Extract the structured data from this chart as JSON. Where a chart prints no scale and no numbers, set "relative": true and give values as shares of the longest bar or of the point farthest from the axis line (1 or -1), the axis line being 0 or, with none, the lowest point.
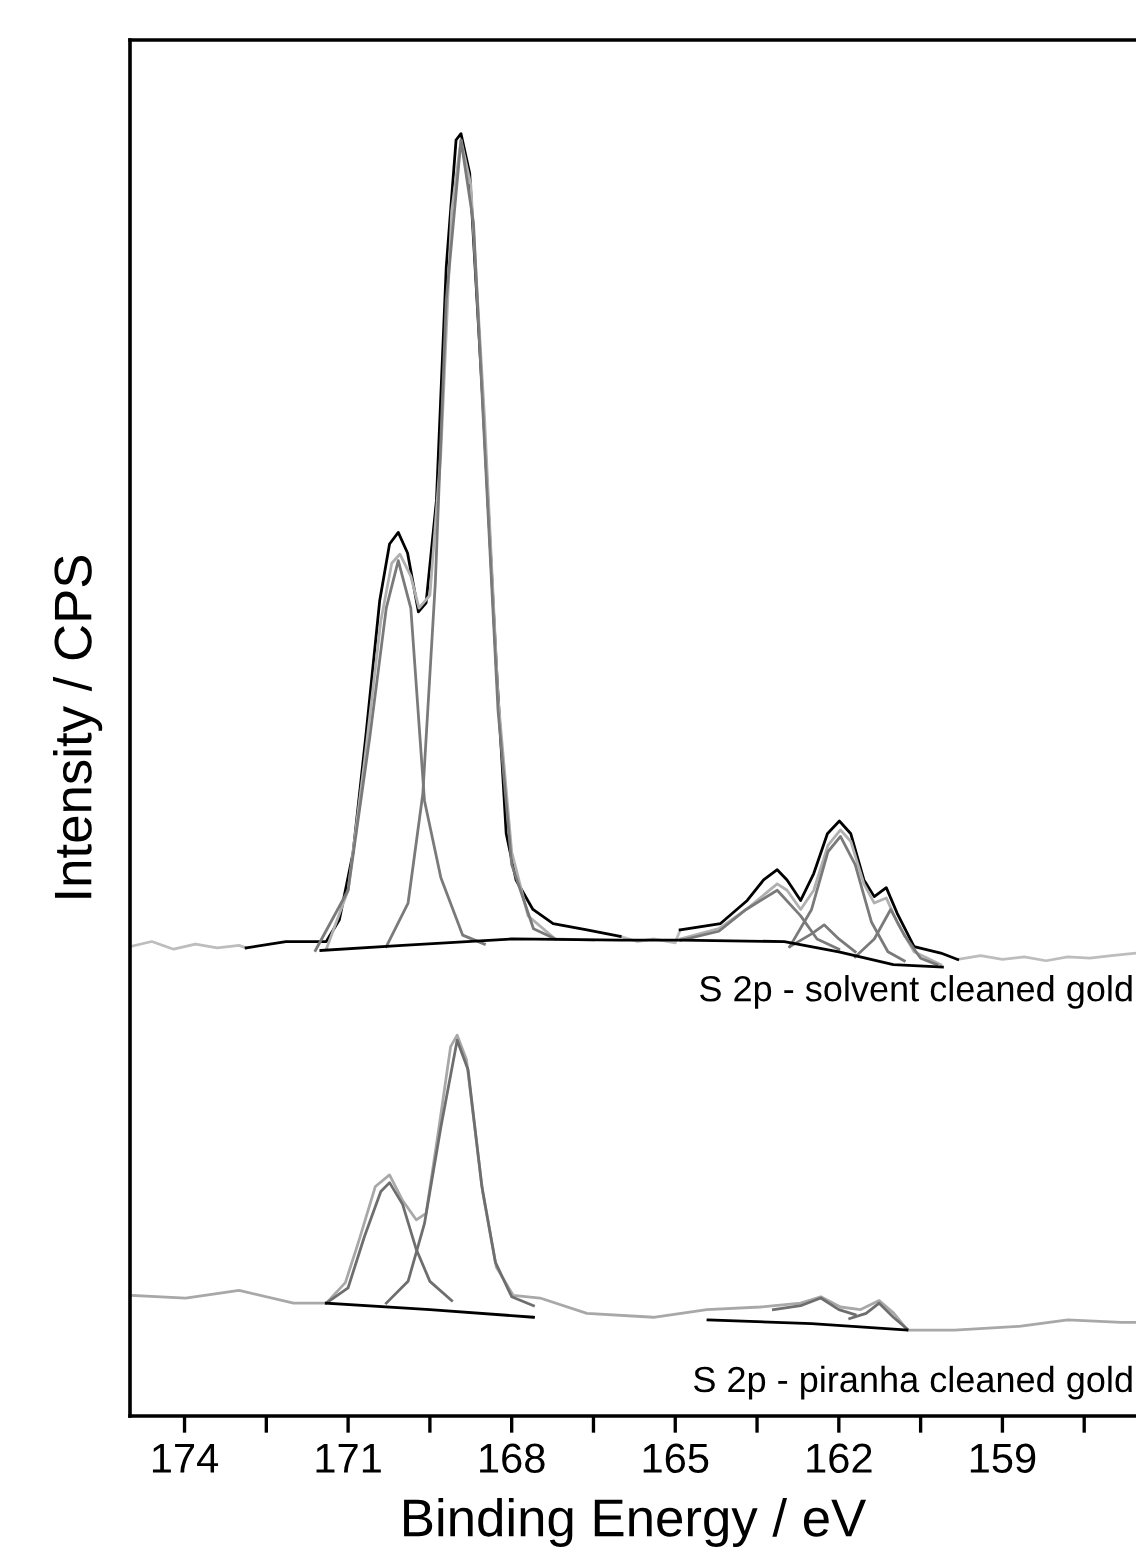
{
  "chart_data": {
    "type": "line",
    "relative": true,
    "xlabel": "Binding Energy / eV",
    "ylabel": "Intensity / CPS",
    "xlim": [
      175,
      156.55
    ],
    "xticks": [
      174,
      {
        "value": 172.5,
        "label": null
      },
      171,
      {
        "value": 169.5,
        "label": null
      },
      168,
      {
        "value": 166.5,
        "label": null
      },
      165,
      {
        "value": 163.5,
        "label": null
      },
      162,
      {
        "value": 160.5,
        "label": null
      },
      159,
      {
        "value": 157.5,
        "label": null
      }
    ],
    "tick_labels": "x",
    "grid": false,
    "legend": false,
    "marker": "none",
    "line_style": "solid",
    "annotations": [
      "S 2p - solvent cleaned gold",
      "S 2p - piranha cleaned gold"
    ],
    "series": [
      {
        "color": "#bdbdbd",
        "x": [
          175.0,
          174.6,
          174.2,
          173.8,
          173.4,
          173.0,
          172.87,
          169.0,
          166.01,
          165.7,
          165.4,
          165.0,
          164.91,
          162.0,
          159.82,
          159.4,
          159.0,
          158.6,
          158.2,
          157.8,
          157.4,
          157.0,
          156.55
        ],
        "values": [
          0.366,
          0.37,
          0.364,
          0.368,
          0.365,
          0.367,
          0.365,
          null,
          0.374,
          0.37,
          0.372,
          0.369,
          0.379,
          null,
          0.356,
          0.359,
          0.356,
          0.358,
          0.355,
          0.358,
          0.357,
          0.359,
          0.361
        ]
      },
      {
        "color": "#000000",
        "x": [
          172.87,
          172.14,
          171.4,
          171.16,
          170.91,
          170.67,
          170.42,
          170.24,
          170.08,
          169.91,
          169.71,
          169.57,
          169.38,
          169.2,
          169.02,
          168.93,
          168.77,
          168.53,
          168.28,
          168.1,
          167.92,
          167.61,
          167.24,
          166.62,
          166.01,
          165.4,
          164.91,
          164.17,
          163.68,
          163.38,
          163.13,
          162.95,
          162.7,
          162.46,
          162.21,
          161.99,
          161.78,
          161.54,
          161.35,
          161.13,
          160.93,
          160.62,
          160.13,
          159.82
        ],
        "values": [
          0.365,
          0.37,
          0.37,
          0.387,
          0.439,
          0.532,
          0.636,
          0.68,
          0.689,
          0.673,
          0.627,
          0.634,
          0.714,
          0.896,
          0.995,
          1.0,
          0.969,
          0.792,
          0.584,
          0.454,
          0.418,
          0.395,
          0.384,
          0.379,
          0.374,
          null,
          0.379,
          0.384,
          0.402,
          0.418,
          0.426,
          0.418,
          0.402,
          0.423,
          0.454,
          0.464,
          0.454,
          0.418,
          0.405,
          0.412,
          0.392,
          0.366,
          0.361,
          0.356
        ]
      },
      {
        "color": "#b0b0b0",
        "x": [
          171.4,
          171.0,
          170.7,
          170.4,
          170.2,
          170.05,
          169.85,
          169.7,
          169.5,
          169.3,
          169.1,
          168.93,
          168.75,
          168.5,
          168.25,
          168.0,
          167.7,
          167.2,
          166.5,
          165.7,
          164.9,
          164.2,
          163.7,
          163.13,
          162.95,
          162.7,
          162.46,
          162.2,
          161.97,
          161.78,
          161.54,
          161.35,
          161.13,
          160.93,
          160.62,
          160.13
        ],
        "values": [
          0.364,
          0.41,
          0.51,
          0.62,
          0.665,
          0.672,
          0.655,
          0.63,
          0.64,
          0.75,
          0.94,
          0.995,
          0.96,
          0.78,
          0.56,
          0.44,
          0.39,
          0.372,
          0.371,
          null,
          0.372,
          0.38,
          0.395,
          0.415,
          0.41,
          0.395,
          0.41,
          0.445,
          0.457,
          0.448,
          0.415,
          0.4,
          0.404,
          0.385,
          0.362,
          0.352
        ]
      },
      {
        "color": "#7a7a7a",
        "x": [
          171.6,
          171.0,
          170.6,
          170.3,
          170.08,
          169.85,
          169.6,
          169.3,
          168.9,
          168.5
        ],
        "values": [
          0.363,
          0.41,
          0.53,
          0.63,
          0.667,
          0.63,
          0.48,
          0.42,
          0.375,
          0.368
        ]
      },
      {
        "color": "#7a7a7a",
        "x": [
          170.3,
          169.9,
          169.63,
          169.4,
          169.2,
          168.93,
          168.7,
          168.5,
          168.25,
          168.0,
          167.6,
          167.2
        ],
        "values": [
          0.366,
          0.4,
          0.485,
          0.65,
          0.87,
          0.995,
          0.93,
          0.76,
          0.55,
          0.43,
          0.38,
          0.372
        ]
      },
      {
        "color": "#7a7a7a",
        "x": [
          164.9,
          164.2,
          163.7,
          163.13,
          162.7,
          162.4,
          162.0
        ],
        "values": [
          0.371,
          0.378,
          0.395,
          0.41,
          0.39,
          0.372,
          0.364
        ]
      },
      {
        "color": "#7a7a7a",
        "x": [
          162.9,
          162.5,
          162.27,
          162.0,
          161.7
        ],
        "values": [
          0.366,
          0.376,
          0.383,
          0.372,
          0.362
        ]
      },
      {
        "color": "#7a7a7a",
        "x": [
          162.9,
          162.5,
          162.2,
          161.97,
          161.7,
          161.4,
          161.1,
          160.8
        ],
        "values": [
          0.366,
          0.395,
          0.44,
          0.452,
          0.43,
          0.385,
          0.362,
          0.355
        ]
      },
      {
        "color": "#7a7a7a",
        "x": [
          161.7,
          161.35,
          161.05,
          160.8,
          160.5,
          160.2
        ],
        "values": [
          0.358,
          0.372,
          0.395,
          0.375,
          0.357,
          0.352
        ]
      },
      {
        "color": "#000000",
        "x": [
          171.5,
          170.0,
          168.0,
          166.0,
          164.9,
          163.0,
          162.0,
          161.0,
          160.1
        ],
        "values": [
          0.363,
          0.367,
          0.372,
          0.371,
          0.371,
          0.37,
          0.362,
          0.352,
          0.35
        ]
      },
      {
        "color": "#a8a8a8",
        "x": [
          174.96,
          173.98,
          173.0,
          172.0,
          171.4,
          171.05,
          170.8,
          170.5,
          170.24,
          170.0,
          169.75,
          169.57,
          169.33,
          169.12,
          169.0,
          168.83,
          168.53,
          168.28,
          167.97,
          167.48,
          166.62,
          165.4,
          164.42,
          163.44,
          162.7,
          162.33,
          161.97,
          161.6,
          161.26,
          160.99,
          160.74,
          159.88,
          158.66,
          157.8,
          156.82,
          156.57
        ],
        "values": [
          0.094,
          0.092,
          0.098,
          0.088,
          0.088,
          0.104,
          0.137,
          0.179,
          0.188,
          0.168,
          0.153,
          0.158,
          0.226,
          0.288,
          0.297,
          0.278,
          0.174,
          0.116,
          0.094,
          0.092,
          0.08,
          0.077,
          0.083,
          0.085,
          0.088,
          0.093,
          0.085,
          0.083,
          0.09,
          0.08,
          0.067,
          0.067,
          0.07,
          0.075,
          0.073,
          0.073
        ]
      },
      {
        "color": "#6e6e6e",
        "x": [
          171.4,
          171.0,
          170.7,
          170.4,
          170.24,
          170.0,
          169.75,
          169.5,
          169.1
        ],
        "values": [
          0.088,
          0.1,
          0.14,
          0.175,
          0.182,
          0.165,
          0.13,
          0.105,
          0.09
        ]
      },
      {
        "color": "#6e6e6e",
        "x": [
          170.3,
          169.9,
          169.6,
          169.3,
          169.0,
          168.8,
          168.55,
          168.3,
          168.0,
          167.6
        ],
        "values": [
          0.088,
          0.105,
          0.15,
          0.225,
          0.293,
          0.27,
          0.18,
          0.12,
          0.093,
          0.086
        ]
      },
      {
        "color": "#6e6e6e",
        "x": [
          163.2,
          162.7,
          162.33,
          162.0,
          161.7
        ],
        "values": [
          0.083,
          0.086,
          0.092,
          0.083,
          0.079
        ]
      },
      {
        "color": "#6e6e6e",
        "x": [
          161.8,
          161.5,
          161.26,
          161.0,
          160.75
        ],
        "values": [
          0.076,
          0.08,
          0.088,
          0.077,
          0.068
        ]
      },
      {
        "color": "#000000",
        "x": [
          171.4,
          169.5,
          167.6,
          166.0,
          164.4,
          162.5,
          160.75
        ],
        "values": [
          0.088,
          0.083,
          0.077,
          null,
          0.075,
          0.072,
          0.067
        ]
      }
    ]
  }
}
